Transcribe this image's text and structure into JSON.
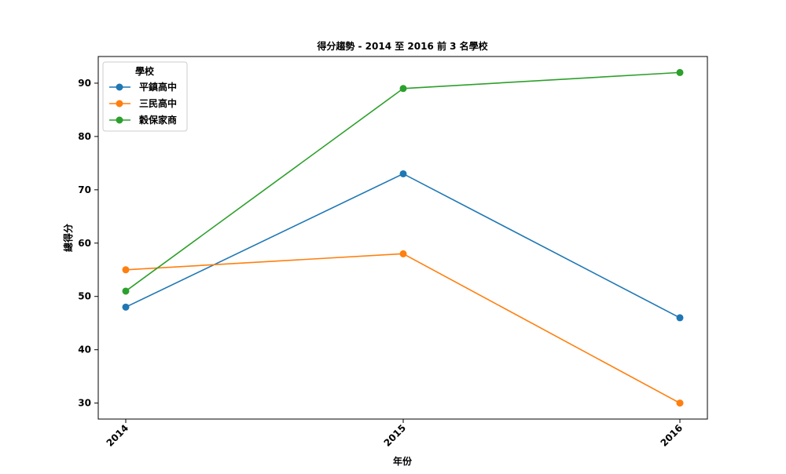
{
  "chart_data": {
    "type": "line",
    "title": "得分趨勢 - 2014 至 2016 前 3 名學校",
    "xlabel": "年份",
    "ylabel": "總得分",
    "categories": [
      "2014",
      "2015",
      "2016"
    ],
    "yticks": [
      "30",
      "40",
      "50",
      "60",
      "70",
      "80",
      "90"
    ],
    "ylim": [
      27,
      95
    ],
    "legend": {
      "title": "學校",
      "position": "top-left"
    },
    "grid": false,
    "series": [
      {
        "name": "平鎮高中",
        "color": "#1f77b4",
        "values": [
          48,
          73,
          46
        ]
      },
      {
        "name": "三民高中",
        "color": "#ff7f0e",
        "values": [
          55,
          58,
          30
        ]
      },
      {
        "name": "穀保家商",
        "color": "#2ca02c",
        "values": [
          51,
          89,
          92
        ]
      }
    ]
  }
}
